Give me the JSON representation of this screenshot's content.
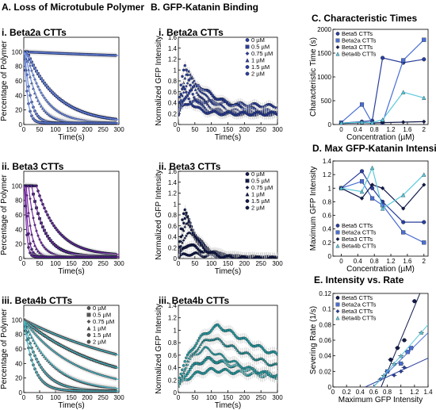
{
  "figure": {
    "columns": [
      {
        "id": "A",
        "title": "A. Loss of Microtubule Polymer"
      },
      {
        "id": "B",
        "title": "B. GFP-Katanin Binding"
      },
      {
        "id": "C",
        "title": "C. Characteristic Times"
      }
    ],
    "microtubule_panel_titles": [
      "i. Beta2a CTTs",
      "ii. Beta3 CTTs",
      "iii. Beta4b CTTs"
    ],
    "summary_panel_titles": {
      "D": "D. Max GFP-Katanin Intensity",
      "E": "E. Intensity vs. Rate"
    }
  },
  "chart_data": [
    {
      "id": "A-i",
      "type": "scatter",
      "title": "i. Beta2a CTTs",
      "xlabel": "Time(s)",
      "ylabel": "Percentage of Polymer",
      "xlim": [
        0,
        300
      ],
      "ylim": [
        0,
        120
      ],
      "xticks": [
        0,
        50,
        100,
        150,
        200,
        250,
        300
      ],
      "yticks": [
        0,
        20,
        40,
        60,
        80,
        100
      ],
      "marker": "#2b3f9c",
      "fit": "#6f8fe0",
      "series": [
        {
          "name": "0 µM",
          "start": 100,
          "end": 82,
          "tau": 900,
          "offset": 0
        },
        {
          "name": "0.5 µM",
          "start": 100,
          "end": 2,
          "tau": 95,
          "offset": 10
        },
        {
          "name": "0.75 µM",
          "start": 100,
          "end": 2,
          "tau": 55,
          "offset": 8
        },
        {
          "name": "1 µM",
          "start": 100,
          "end": 2,
          "tau": 35,
          "offset": 5
        },
        {
          "name": "1.5 µM",
          "start": 100,
          "end": 2,
          "tau": 18,
          "offset": 3
        },
        {
          "name": "2 µM",
          "start": 100,
          "end": 2,
          "tau": 10,
          "offset": 2
        }
      ]
    },
    {
      "id": "A-ii",
      "type": "scatter",
      "title": "ii. Beta3 CTTs",
      "xlabel": "Time(s)",
      "ylabel": "Percentage of Polymer",
      "xlim": [
        0,
        300
      ],
      "ylim": [
        0,
        120
      ],
      "xticks": [
        0,
        50,
        100,
        150,
        200,
        250,
        300
      ],
      "yticks": [
        0,
        20,
        40,
        60,
        80,
        100
      ],
      "marker": "#111a4a",
      "fit": "#7a2aa8",
      "series": [
        {
          "name": "0 µM",
          "start": 100,
          "end": 4,
          "tau": 65,
          "offset": 40
        },
        {
          "name": "0.5 µM",
          "start": 100,
          "end": 3,
          "tau": 40,
          "offset": 25
        },
        {
          "name": "0.75 µM",
          "start": 100,
          "end": 2,
          "tau": 25,
          "offset": 15
        },
        {
          "name": "1 µM",
          "start": 100,
          "end": 2,
          "tau": 15,
          "offset": 8
        },
        {
          "name": "1.5 µM",
          "start": 100,
          "end": 2,
          "tau": 9,
          "offset": 5
        },
        {
          "name": "2 µM",
          "start": 100,
          "end": 2,
          "tau": 6,
          "offset": 3
        }
      ]
    },
    {
      "id": "A-iii",
      "type": "scatter",
      "title": "iii. Beta4b CTTs",
      "xlabel": "Time(s)",
      "ylabel": "Percentage of Polymer",
      "xlim": [
        0,
        300
      ],
      "ylim": [
        0,
        120
      ],
      "xticks": [
        0,
        50,
        100,
        150,
        200,
        250,
        300
      ],
      "yticks": [
        0,
        20,
        40,
        60,
        80,
        100
      ],
      "marker": "#555555",
      "fit": "#3fb8c9",
      "legend": [
        "0 µM",
        "0.5 µM",
        "0.75 µM",
        "1 µM",
        "1.5 µM",
        "2 µM"
      ],
      "series": [
        {
          "name": "0 µM",
          "start": 100,
          "end": 5,
          "tau": 420,
          "offset": 0
        },
        {
          "name": "0.5 µM",
          "start": 100,
          "end": 3,
          "tau": 260,
          "offset": 0
        },
        {
          "name": "0.75 µM",
          "start": 100,
          "end": 3,
          "tau": 160,
          "offset": 0
        },
        {
          "name": "1 µM",
          "start": 100,
          "end": 2,
          "tau": 90,
          "offset": 0
        },
        {
          "name": "1.5 µM",
          "start": 100,
          "end": 2,
          "tau": 50,
          "offset": 0
        },
        {
          "name": "2 µM",
          "start": 100,
          "end": 2,
          "tau": 30,
          "offset": 0
        }
      ]
    },
    {
      "id": "B-i",
      "type": "scatter",
      "title": "i. Beta2a CTTs",
      "xlabel": "Time(s)",
      "ylabel": "Normalized GFP Intensity",
      "xlim": [
        0,
        300
      ],
      "ylim": [
        0,
        1.6
      ],
      "xticks": [
        0,
        50,
        100,
        150,
        200,
        250,
        300
      ],
      "yticks": [
        0,
        0.2,
        0.4,
        0.6,
        0.8,
        1,
        1.2,
        1.4,
        1.6
      ],
      "marker": "#2b3f9c",
      "legend": [
        "0 µM",
        "0.5 µM",
        "0.75 µM",
        "1 µM",
        "1.5 µM",
        "2 µM"
      ],
      "series": [
        {
          "name": "0 µM",
          "peak": 0.25,
          "t_peak": 40,
          "decay": 400,
          "base": 0.2
        },
        {
          "name": "0.5 µM",
          "peak": 0.6,
          "t_peak": 60,
          "decay": 80,
          "base": 0.2
        },
        {
          "name": "0.75 µM",
          "peak": 0.75,
          "t_peak": 40,
          "decay": 50,
          "base": 0.2
        },
        {
          "name": "1 µM",
          "peak": 0.9,
          "t_peak": 30,
          "decay": 35,
          "base": 0.2
        },
        {
          "name": "1.5 µM",
          "peak": 1.0,
          "t_peak": 20,
          "decay": 25,
          "base": 0.2
        },
        {
          "name": "2 µM",
          "peak": 0.55,
          "t_peak": 15,
          "decay": 25,
          "base": 0.2
        }
      ]
    },
    {
      "id": "B-ii",
      "type": "scatter",
      "title": "ii. Beta3 CTTs",
      "xlabel": "Time(s)",
      "ylabel": "Normalized GFP Intensity",
      "xlim": [
        0,
        300
      ],
      "ylim": [
        0,
        1.6
      ],
      "xticks": [
        0,
        50,
        100,
        150,
        200,
        250,
        300
      ],
      "yticks": [
        0,
        0.2,
        0.4,
        0.6,
        0.8,
        1,
        1.2,
        1.4,
        1.6
      ],
      "marker": "#111a4a",
      "legend": [
        "0 µM",
        "0.5 µM",
        "0.75 µM",
        "1 µM",
        "1.5 µM",
        "2 µM"
      ],
      "series": [
        {
          "name": "0 µM",
          "peak": 0.1,
          "t_peak": 30,
          "decay": 100,
          "base": 0.0
        },
        {
          "name": "0.5 µM",
          "peak": 0.3,
          "t_peak": 30,
          "decay": 60,
          "base": 0.0
        },
        {
          "name": "0.75 µM",
          "peak": 0.55,
          "t_peak": 30,
          "decay": 50,
          "base": 0.0
        },
        {
          "name": "1 µM",
          "peak": 0.75,
          "t_peak": 25,
          "decay": 45,
          "base": 0.0
        },
        {
          "name": "1.5 µM",
          "peak": 0.9,
          "t_peak": 25,
          "decay": 40,
          "base": 0.0
        },
        {
          "name": "2 µM",
          "peak": 1.0,
          "t_peak": 20,
          "decay": 35,
          "base": 0.0
        }
      ]
    },
    {
      "id": "B-iii",
      "type": "scatter",
      "title": "iii. Beta4b CTTs",
      "xlabel": "Time(s)",
      "ylabel": "Normalized GFP Intensity",
      "xlim": [
        0,
        300
      ],
      "ylim": [
        0,
        1.4
      ],
      "xticks": [
        0,
        50,
        100,
        150,
        200,
        250,
        300
      ],
      "yticks": [
        0,
        0.2,
        0.4,
        0.6,
        0.8,
        1,
        1.2,
        1.4
      ],
      "marker": "#2aa1a8",
      "series": [
        {
          "name": "0 µM",
          "peak": 0.3,
          "t_peak": 100,
          "decay": 300,
          "base": 0.1
        },
        {
          "name": "0.5 µM",
          "peak": 0.5,
          "t_peak": 90,
          "decay": 200,
          "base": 0.1
        },
        {
          "name": "0.75 µM",
          "peak": 0.7,
          "t_peak": 80,
          "decay": 150,
          "base": 0.1
        },
        {
          "name": "1 µM",
          "peak": 0.9,
          "t_peak": 100,
          "decay": 200,
          "base": 0.1
        },
        {
          "name": "1.5 µM",
          "peak": 1.0,
          "t_peak": 120,
          "decay": 200,
          "base": 0.2
        }
      ]
    },
    {
      "id": "C",
      "type": "line",
      "title": "C. Characteristic Times",
      "xlabel": "Concentration (µM)",
      "ylabel": "Characteristic Time (s)",
      "xlim": [
        -0.2,
        2.1
      ],
      "ylim": [
        0,
        2000
      ],
      "xticks": [
        0,
        0.4,
        0.8,
        1.2,
        1.6,
        2
      ],
      "yticks": [
        0,
        500,
        1000,
        1500,
        2000
      ],
      "series": [
        {
          "name": "Beta5 CTTs",
          "color": "#2b3f9c",
          "x": [
            0,
            0.5,
            0.75,
            1,
            1.5,
            2
          ],
          "y": [
            30,
            60,
            80,
            1400,
            1300,
            1370
          ]
        },
        {
          "name": "Beta2a CTTs",
          "color": "#4a6ed4",
          "x": [
            0,
            0.5,
            0.75,
            1,
            1.5,
            2
          ],
          "y": [
            40,
            420,
            30,
            40,
            1350,
            1780
          ]
        },
        {
          "name": "Beta3 CTTs",
          "color": "#111a4a",
          "x": [
            0,
            0.5,
            0.75,
            1,
            1.5,
            2
          ],
          "y": [
            20,
            40,
            30,
            40,
            50,
            60
          ]
        },
        {
          "name": "Beta4b CTTs",
          "color": "#5bc8dc",
          "x": [
            0,
            0.5,
            0.75,
            1,
            1.5,
            2
          ],
          "y": [
            30,
            50,
            40,
            100,
            680,
            560
          ]
        }
      ]
    },
    {
      "id": "D",
      "type": "line",
      "title": "D. Max GFP-Katanin Intensity",
      "xlabel": "Concentration (µM)",
      "ylabel": "Maximum GFP Intensity",
      "xlim": [
        -0.2,
        2.1
      ],
      "ylim": [
        0,
        1.4
      ],
      "xticks": [
        0,
        0.4,
        0.8,
        1.2,
        1.6,
        2
      ],
      "yticks": [
        0,
        0.2,
        0.4,
        0.6,
        0.8,
        1,
        1.2,
        1.4
      ],
      "series": [
        {
          "name": "Beta5 CTTs",
          "color": "#2b3f9c",
          "x": [
            0,
            0.5,
            0.75,
            1,
            1.5,
            2
          ],
          "y": [
            1.0,
            1.25,
            1.0,
            0.8,
            0.5,
            0.5
          ]
        },
        {
          "name": "Beta2a CTTs",
          "color": "#4a6ed4",
          "x": [
            0,
            0.5,
            0.75,
            1,
            1.5,
            2
          ],
          "y": [
            1.0,
            1.1,
            0.85,
            0.75,
            0.35,
            0.2
          ]
        },
        {
          "name": "Beta3 CTTs",
          "color": "#111a4a",
          "x": [
            0,
            0.5,
            0.75,
            1,
            1.5,
            2
          ],
          "y": [
            1.0,
            0.85,
            1.05,
            1.0,
            0.7,
            1.05
          ]
        },
        {
          "name": "Beta4b CTTs",
          "color": "#5bc8dc",
          "x": [
            0,
            0.5,
            0.75,
            1,
            1.5,
            2
          ],
          "y": [
            1.0,
            0.95,
            1.3,
            0.7,
            0.9,
            1.2
          ]
        }
      ]
    },
    {
      "id": "E",
      "type": "scatter",
      "title": "E. Intensity vs. Rate",
      "xlabel": "Maximum GFP Intensity",
      "ylabel": "Severing Rate (1/s)",
      "xlim": [
        0,
        1.4
      ],
      "ylim": [
        0,
        0.12
      ],
      "xticks": [
        0,
        0.2,
        0.4,
        0.6,
        0.8,
        1,
        1.2,
        1.4
      ],
      "yticks": [
        0,
        0.02,
        0.04,
        0.06,
        0.08,
        0.1,
        0.12
      ],
      "series": [
        {
          "name": "Beta5 CTTs",
          "color": "#111a4a",
          "x": [
            0.85,
            0.95,
            1.05,
            1.2
          ],
          "y": [
            0.035,
            0.05,
            0.06,
            0.11
          ]
        },
        {
          "name": "Beta2a CTTs",
          "color": "#4a6ed4",
          "x": [
            0.8,
            1.0,
            1.1,
            1.15
          ],
          "y": [
            0.02,
            0.03,
            0.045,
            0.05
          ]
        },
        {
          "name": "Beta3 CTTs",
          "color": "#2b3f9c",
          "x": [
            0.7,
            0.9,
            1.0,
            1.05
          ],
          "y": [
            0.01,
            0.015,
            0.02,
            0.025
          ]
        },
        {
          "name": "Beta4b CTTs",
          "color": "#5bc8dc",
          "x": [
            0.75,
            0.9,
            1.0,
            1.3
          ],
          "y": [
            0.015,
            0.03,
            0.04,
            0.07
          ]
        }
      ]
    }
  ]
}
